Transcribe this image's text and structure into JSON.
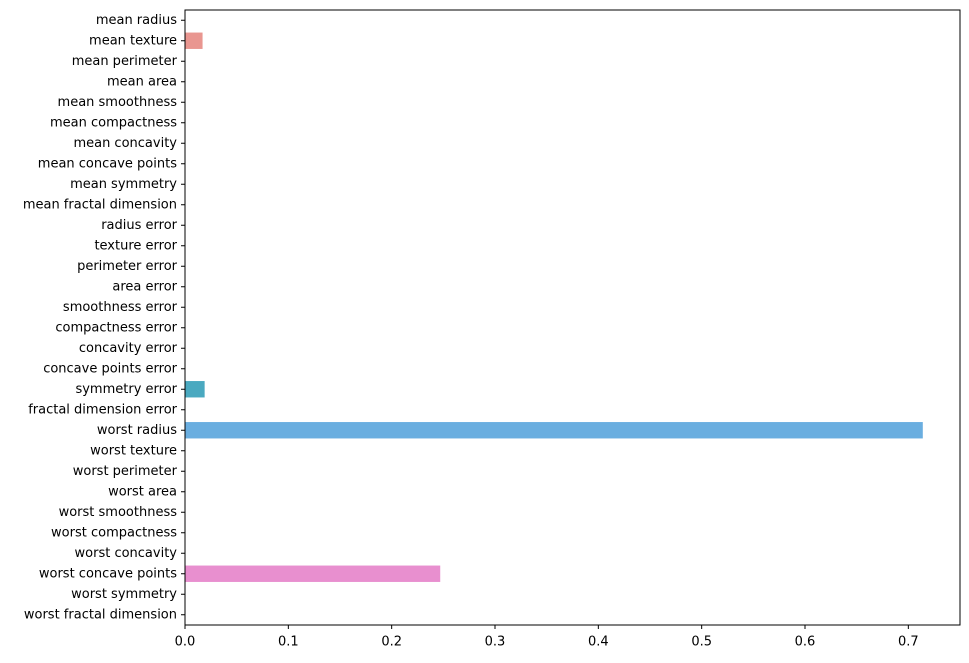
{
  "chart_data": {
    "type": "barh",
    "categories": [
      "mean radius",
      "mean texture",
      "mean perimeter",
      "mean area",
      "mean smoothness",
      "mean compactness",
      "mean concavity",
      "mean concave points",
      "mean symmetry",
      "mean fractal dimension",
      "radius error",
      "texture error",
      "perimeter error",
      "area error",
      "smoothness error",
      "compactness error",
      "concavity error",
      "concave points error",
      "symmetry error",
      "fractal dimension error",
      "worst radius",
      "worst texture",
      "worst perimeter",
      "worst area",
      "worst smoothness",
      "worst compactness",
      "worst concavity",
      "worst concave points",
      "worst symmetry",
      "worst fractal dimension"
    ],
    "values": [
      0,
      0.017,
      0,
      0,
      0,
      0,
      0,
      0,
      0,
      0,
      0,
      0,
      0,
      0,
      0,
      0,
      0,
      0,
      0.019,
      0,
      0.714,
      0,
      0,
      0,
      0,
      0,
      0,
      0.247,
      0,
      0
    ],
    "colors": [
      "#e8938a",
      "#e99690",
      "#e59a6f",
      "#d9a15b",
      "#c9a85a",
      "#b8ae5a",
      "#a6b25a",
      "#92b65c",
      "#7bba5f",
      "#5fbd70",
      "#5bbd8a",
      "#5cbc9c",
      "#5dbbab",
      "#5dbab8",
      "#5db8c4",
      "#5cb5cf",
      "#5bb1d8",
      "#5aaedd",
      "#4aa9c0",
      "#63aee0",
      "#6aaee0",
      "#8aa8e8",
      "#a2a3ea",
      "#b79dea",
      "#c995e7",
      "#d990e2",
      "#e48edb",
      "#e88fcf",
      "#ea90c2",
      "#ea91b3"
    ],
    "xlim": [
      0,
      0.75
    ],
    "xticks": [
      0.0,
      0.1,
      0.2,
      0.3,
      0.4,
      0.5,
      0.6,
      0.7
    ]
  }
}
